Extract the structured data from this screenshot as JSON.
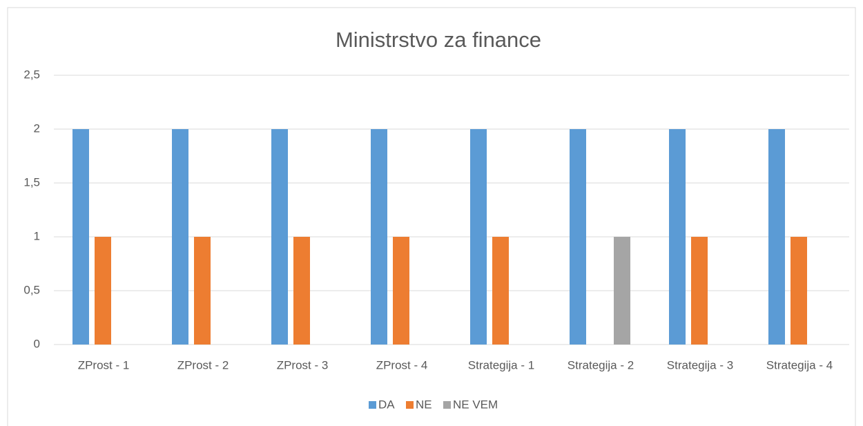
{
  "chart_data": {
    "type": "bar",
    "title": "Ministrstvo za finance",
    "categories": [
      "ZProst - 1",
      "ZProst - 2",
      "ZProst - 3",
      "ZProst - 4",
      "Strategija - 1",
      "Strategija - 2",
      "Strategija - 3",
      "Strategija - 4"
    ],
    "series": [
      {
        "name": "DA",
        "color": "#5b9bd5",
        "values": [
          2,
          2,
          2,
          2,
          2,
          2,
          2,
          2
        ]
      },
      {
        "name": "NE",
        "color": "#ed7d31",
        "values": [
          1,
          1,
          1,
          1,
          1,
          0,
          1,
          1
        ]
      },
      {
        "name": "NE VEM",
        "color": "#a5a5a5",
        "values": [
          0,
          0,
          0,
          0,
          0,
          1,
          0,
          0
        ]
      }
    ],
    "ylim": [
      0,
      2.5
    ],
    "yticks": [
      0,
      {
        "value": 0.5,
        "label": "0,5"
      },
      1,
      {
        "value": 1.5,
        "label": "1,5"
      },
      2,
      {
        "value": 2.5,
        "label": "2,5"
      }
    ],
    "grid": true,
    "legend": "bottom"
  }
}
